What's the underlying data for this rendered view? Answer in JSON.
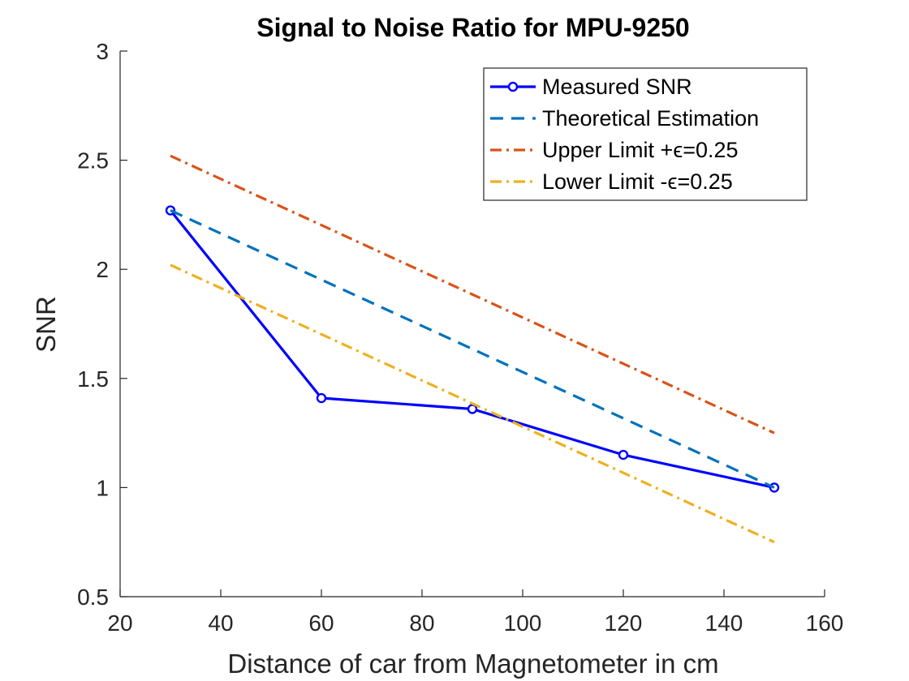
{
  "chart_data": {
    "type": "line",
    "title": "Signal to Noise Ratio for MPU-9250",
    "xlabel": "Distance of car from Magnetometer in cm",
    "ylabel": "SNR",
    "xlim": [
      20,
      160
    ],
    "ylim": [
      0.5,
      3
    ],
    "xticks": [
      "20",
      "40",
      "60",
      "80",
      "100",
      "120",
      "140",
      "160"
    ],
    "yticks": [
      "0.5",
      "1",
      "1.5",
      "2",
      "2.5",
      "3"
    ],
    "grid": false,
    "legend_position": "top-right",
    "series": [
      {
        "name": "Measured SNR",
        "color": "#0000ff",
        "style": "solid-markers-circle",
        "x": [
          30,
          60,
          90,
          120,
          150
        ],
        "y": [
          2.27,
          1.41,
          1.36,
          1.15,
          1.0
        ]
      },
      {
        "name": "Theoretical Estimation",
        "color": "#0072bd",
        "style": "dashed",
        "x": [
          30,
          150
        ],
        "y": [
          2.27,
          1.0
        ]
      },
      {
        "name": "Upper Limit +ϵ=0.25",
        "color": "#d95319",
        "style": "dashdot",
        "x": [
          30,
          150
        ],
        "y": [
          2.52,
          1.25
        ]
      },
      {
        "name": "Lower Limit -ϵ=0.25",
        "color": "#edb120",
        "style": "dashdot",
        "x": [
          30,
          150
        ],
        "y": [
          2.02,
          0.75
        ]
      }
    ]
  }
}
